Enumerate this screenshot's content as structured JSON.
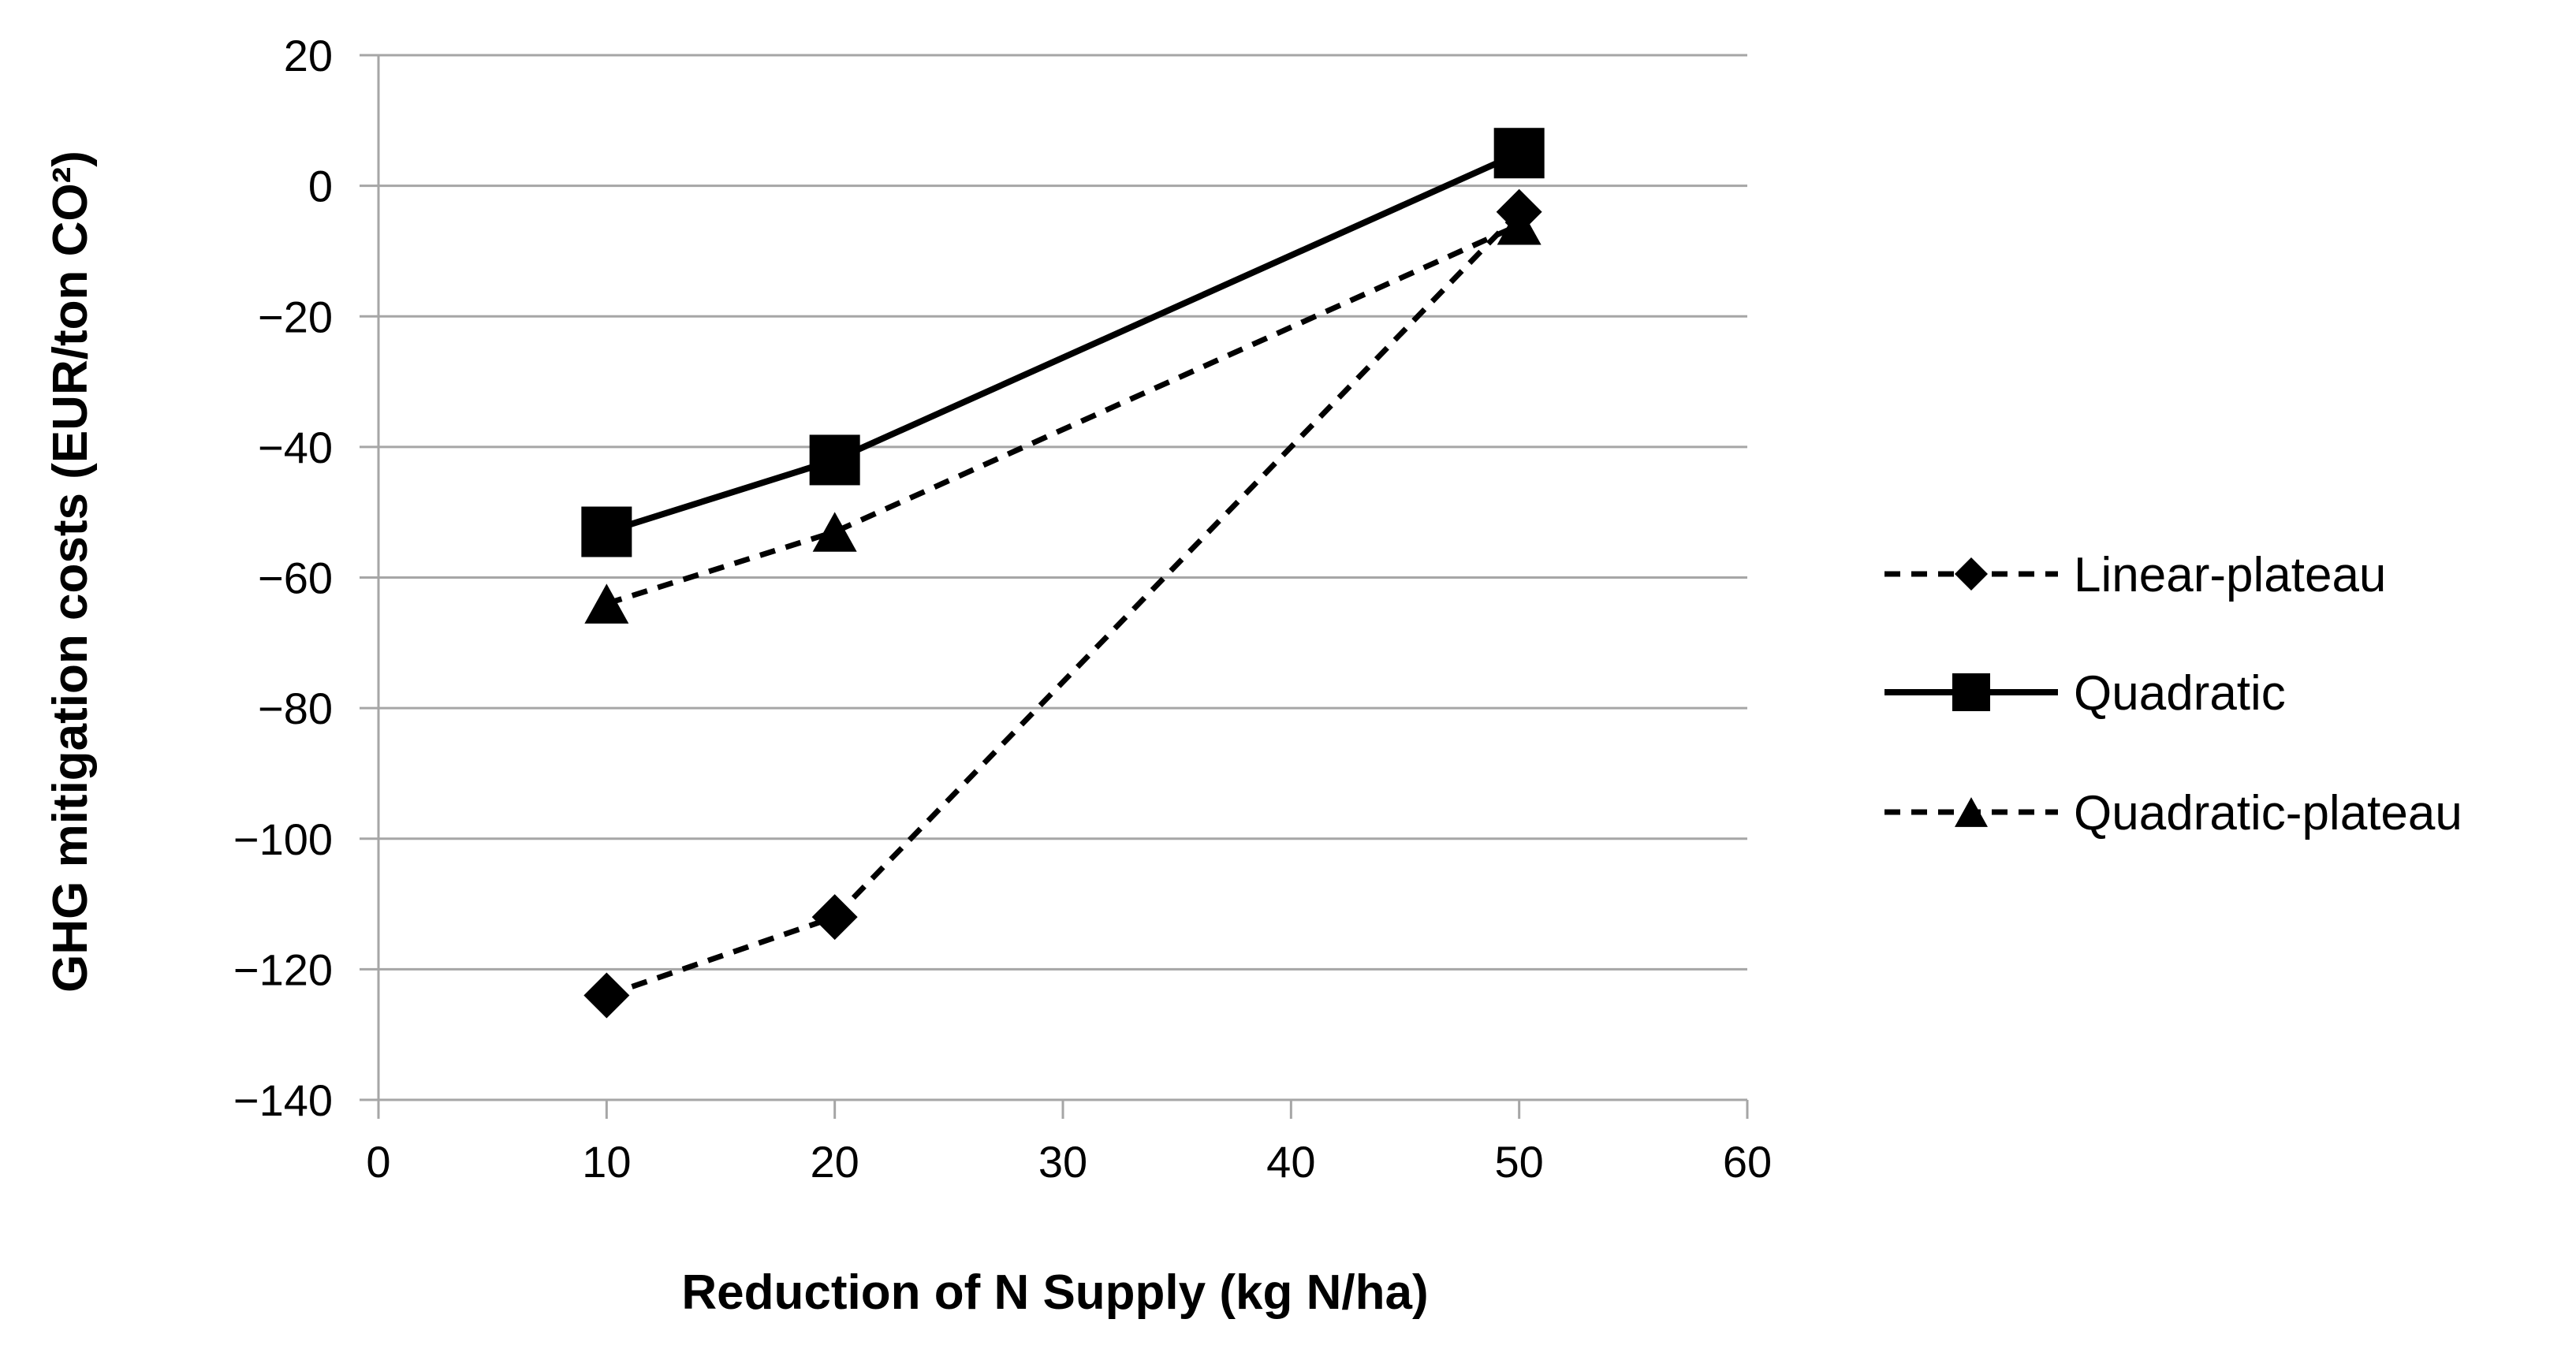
{
  "chart_data": {
    "type": "line",
    "title": "",
    "xlabel": "Reduction of N Supply (kg N/ha)",
    "ylabel": "GHG mitigation costs (EUR/ton CO²)",
    "xlim": [
      0,
      60
    ],
    "ylim": [
      -140,
      20
    ],
    "xticks": [
      0,
      10,
      20,
      30,
      40,
      50,
      60
    ],
    "yticks": [
      20,
      0,
      -20,
      -40,
      -60,
      -80,
      -100,
      -120,
      -140
    ],
    "ytick_labels": [
      "20",
      "0",
      "−20",
      "−40",
      "−60",
      "−80",
      "−100",
      "−120",
      "−140"
    ],
    "grid": "horizontal",
    "legend_position": "right",
    "series": [
      {
        "name": "Linear-plateau",
        "marker": "diamond",
        "line_style": "dashed",
        "x": [
          10,
          20,
          50
        ],
        "values": [
          -124,
          -112,
          -4
        ]
      },
      {
        "name": "Quadratic",
        "marker": "square",
        "line_style": "solid",
        "x": [
          10,
          20,
          50
        ],
        "values": [
          -53,
          -42,
          5
        ]
      },
      {
        "name": "Quadratic-plateau",
        "marker": "triangle",
        "line_style": "dashed",
        "x": [
          10,
          20,
          50
        ],
        "values": [
          -64,
          -53,
          -6
        ]
      }
    ],
    "colors": {
      "series": "#000000",
      "grid": "#a6a6a6",
      "axis": "#a6a6a6"
    }
  }
}
